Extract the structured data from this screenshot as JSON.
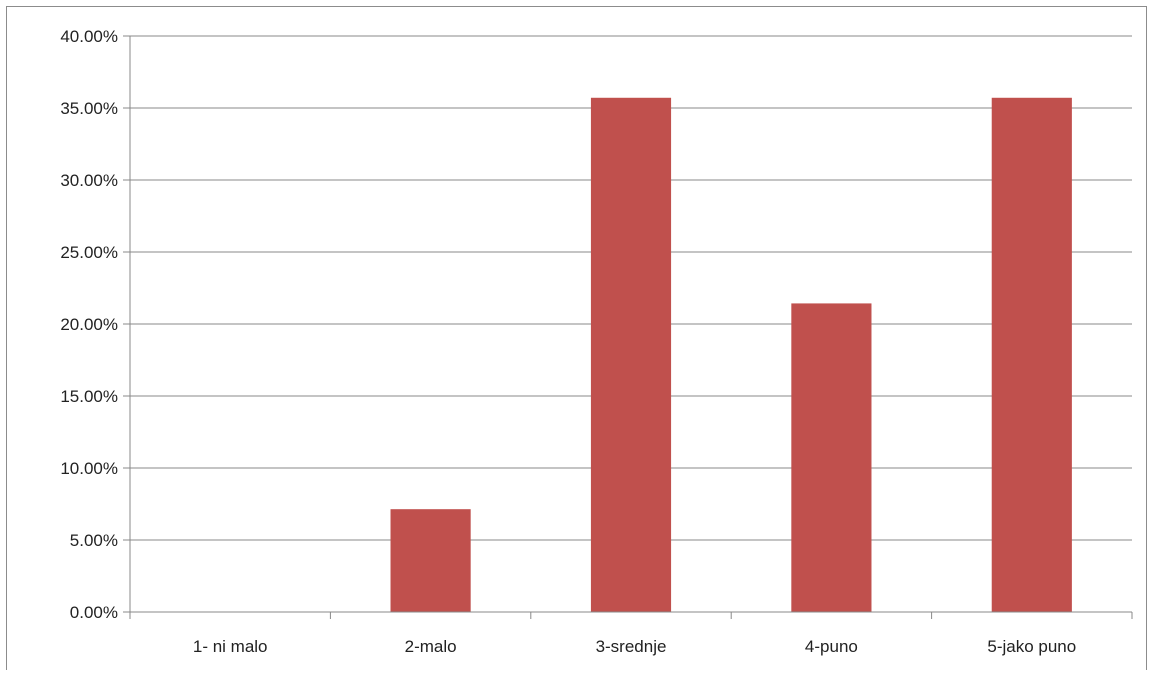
{
  "chart_data": {
    "type": "bar",
    "categories": [
      "1- ni malo",
      "2-malo",
      "3-srednje",
      "4-puno",
      "5-jako puno"
    ],
    "values": [
      0,
      7.14,
      35.71,
      21.43,
      35.71
    ],
    "ylim": [
      0,
      40
    ],
    "yticks": [
      "0.00%",
      "5.00%",
      "10.00%",
      "15.00%",
      "20.00%",
      "25.00%",
      "30.00%",
      "35.00%",
      "40.00%"
    ],
    "title": "",
    "xlabel": "",
    "ylabel": "",
    "grid": true,
    "legend": "none",
    "bar_color": "#c0504d",
    "grid_color": "#888888"
  }
}
